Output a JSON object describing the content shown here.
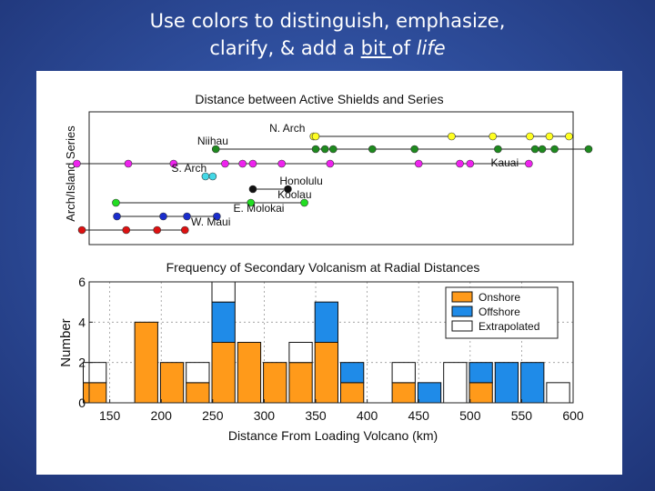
{
  "slide": {
    "title_part1": "Use colors to distinguish, emphasize,",
    "title_part2": "clarify, & add a ",
    "title_underlined": "bit ",
    "title_part3": "of ",
    "title_italic": "life"
  },
  "chart_data": [
    {
      "type": "scatter",
      "title": "Distance between Active Shields and Series",
      "ylabel": "Arch/Island Series",
      "xlim": [
        130,
        600
      ],
      "series": [
        {
          "name": "N. Arch",
          "color": "#ffff22",
          "label_x": 305,
          "x": [
            348,
            350,
            482,
            522,
            558,
            577,
            596
          ]
        },
        {
          "name": "Niihau",
          "color": "#1e8a1e",
          "label_x": 235,
          "x": [
            253,
            350,
            359,
            367,
            405,
            446,
            527,
            563,
            570,
            582,
            615
          ]
        },
        {
          "name": "",
          "color": "#ee22ee",
          "label_x": null,
          "x": [
            118,
            168,
            212,
            262,
            279,
            289,
            317,
            364,
            450,
            490,
            500,
            557
          ]
        },
        {
          "name": "Kauai",
          "color": "#ee22ee",
          "label_x": 520,
          "x": []
        },
        {
          "name": "S. Arch",
          "color": "#44d8e6",
          "label_x": 210,
          "x": [
            243,
            250
          ]
        },
        {
          "name": "Honolulu",
          "color": "#111111",
          "label_x": 315,
          "x": [
            289,
            323
          ]
        },
        {
          "name": "Koolau",
          "color": "#22dd22",
          "label_x": 313,
          "x": [
            156,
            287,
            339
          ]
        },
        {
          "name": "E. Molokai",
          "color": "#1a2dcc",
          "label_x": 270,
          "x": [
            157,
            202,
            225,
            254
          ]
        },
        {
          "name": "W. Maui",
          "color": "#dd1111",
          "label_x": 229,
          "x": [
            123,
            166,
            196,
            223
          ]
        }
      ]
    },
    {
      "type": "bar",
      "title": "Frequency of Secondary Volcanism at Radial Distances",
      "xlabel": "Distance From Loading Volcano (km)",
      "ylabel": "Number",
      "xlim": [
        130,
        600
      ],
      "xticks": [
        150,
        200,
        250,
        300,
        350,
        400,
        450,
        500,
        550,
        600
      ],
      "ylim": [
        0,
        6
      ],
      "yticks": [
        0,
        2,
        4,
        6
      ],
      "grid": true,
      "legend_position": "top-right",
      "categories": [
        135,
        160,
        185,
        210,
        235,
        260,
        285,
        310,
        335,
        360,
        385,
        410,
        435,
        460,
        485,
        510,
        535,
        560,
        585
      ],
      "series": [
        {
          "name": "Onshore",
          "color": "#ff9a1a",
          "values": [
            1,
            0,
            4,
            2,
            1,
            3,
            3,
            2,
            2,
            3,
            1,
            0,
            1,
            0,
            0,
            1,
            0,
            0,
            0
          ]
        },
        {
          "name": "Offshore",
          "color": "#1f8be8",
          "values": [
            0,
            0,
            0,
            0,
            0,
            2,
            0,
            0,
            0,
            2,
            1,
            0,
            0,
            1,
            0,
            1,
            2,
            2,
            0
          ]
        },
        {
          "name": "Extrapolated",
          "color": "#ffffff",
          "values": [
            1,
            0,
            0,
            0,
            1,
            1,
            0,
            0,
            1,
            0,
            0,
            0,
            1,
            0,
            2,
            0,
            0,
            0,
            1
          ]
        }
      ]
    }
  ]
}
